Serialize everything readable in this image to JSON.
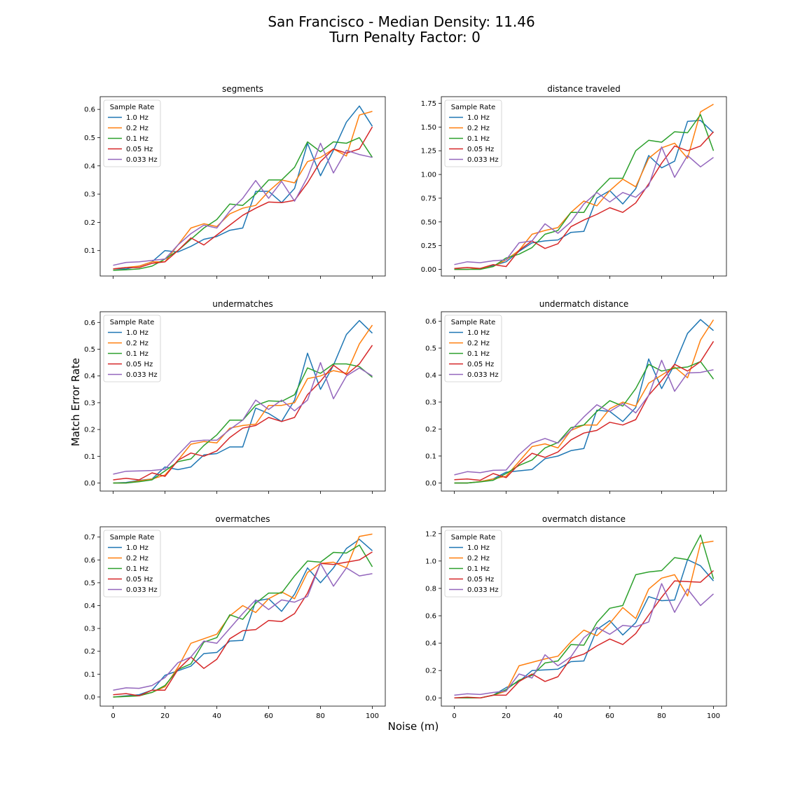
{
  "figure": {
    "title_line1": "San Francisco - Median Density: 11.46",
    "title_line2": "Turn Penalty Factor: 0",
    "xlabel": "Noise (m)",
    "ylabel": "Match Error Rate"
  },
  "colors": {
    "1.0 Hz": "#1f77b4",
    "0.2 Hz": "#ff7f0e",
    "0.1 Hz": "#2ca02c",
    "0.05 Hz": "#d62728",
    "0.033 Hz": "#9467bd"
  },
  "chart_data": [
    {
      "type": "line",
      "title": "segments",
      "legend_title": "Sample Rate",
      "legend_position": "upper-left",
      "x": [
        0,
        5,
        10,
        15,
        20,
        25,
        30,
        35,
        40,
        45,
        50,
        55,
        60,
        65,
        70,
        75,
        80,
        85,
        90,
        95,
        100
      ],
      "xlim": [
        -5,
        105
      ],
      "xticks": [
        0,
        20,
        40,
        60,
        80,
        100
      ],
      "ylim": [
        0.01,
        0.645
      ],
      "yticks": [
        0.1,
        0.2,
        0.3,
        0.4,
        0.5,
        0.6
      ],
      "yticklabels": [
        "0.1",
        "0.2",
        "0.3",
        "0.4",
        "0.5",
        "0.6"
      ],
      "series": [
        {
          "name": "1.0 Hz",
          "values": [
            0.035,
            0.035,
            0.045,
            0.06,
            0.1,
            0.095,
            0.115,
            0.14,
            0.15,
            0.172,
            0.18,
            0.31,
            0.31,
            0.27,
            0.32,
            0.48,
            0.365,
            0.455,
            0.555,
            0.612,
            0.54
          ]
        },
        {
          "name": "0.2 Hz",
          "values": [
            0.035,
            0.04,
            0.045,
            0.06,
            0.06,
            0.12,
            0.18,
            0.195,
            0.185,
            0.23,
            0.25,
            0.26,
            0.31,
            0.35,
            0.34,
            0.415,
            0.43,
            0.46,
            0.435,
            0.58,
            0.593
          ]
        },
        {
          "name": "0.1 Hz",
          "values": [
            0.03,
            0.032,
            0.035,
            0.045,
            0.07,
            0.1,
            0.14,
            0.18,
            0.21,
            0.265,
            0.26,
            0.3,
            0.35,
            0.35,
            0.395,
            0.485,
            0.45,
            0.485,
            0.48,
            0.5,
            0.43
          ]
        },
        {
          "name": "0.05 Hz",
          "values": [
            0.035,
            0.04,
            0.04,
            0.055,
            0.06,
            0.1,
            0.145,
            0.12,
            0.155,
            0.19,
            0.225,
            0.25,
            0.272,
            0.27,
            0.278,
            0.34,
            0.415,
            0.46,
            0.445,
            0.46,
            0.538
          ]
        },
        {
          "name": "0.033 Hz",
          "values": [
            0.048,
            0.058,
            0.06,
            0.065,
            0.07,
            0.12,
            0.16,
            0.19,
            0.18,
            0.24,
            0.285,
            0.348,
            0.285,
            0.345,
            0.275,
            0.36,
            0.48,
            0.375,
            0.455,
            0.44,
            0.43
          ]
        }
      ]
    },
    {
      "type": "line",
      "title": "distance traveled",
      "legend_title": "Sample Rate",
      "legend_position": "upper-left",
      "x": [
        0,
        5,
        10,
        15,
        20,
        25,
        30,
        35,
        40,
        45,
        50,
        55,
        60,
        65,
        70,
        75,
        80,
        85,
        90,
        95,
        100
      ],
      "xlim": [
        -5,
        105
      ],
      "xticks": [
        0,
        20,
        40,
        60,
        80,
        100
      ],
      "ylim": [
        -0.07,
        1.82
      ],
      "yticks": [
        0.0,
        0.25,
        0.5,
        0.75,
        1.0,
        1.25,
        1.5,
        1.75
      ],
      "yticklabels": [
        "0.00",
        "0.25",
        "0.50",
        "0.75",
        "1.00",
        "1.25",
        "1.50",
        "1.75"
      ],
      "series": [
        {
          "name": "1.0 Hz",
          "values": [
            0.0,
            0.0,
            0.01,
            0.04,
            0.08,
            0.19,
            0.28,
            0.3,
            0.31,
            0.39,
            0.4,
            0.75,
            0.83,
            0.69,
            0.85,
            1.2,
            1.07,
            1.14,
            1.56,
            1.57,
            1.44
          ]
        },
        {
          "name": "0.2 Hz",
          "values": [
            0.0,
            0.0,
            0.01,
            0.03,
            0.1,
            0.2,
            0.37,
            0.41,
            0.44,
            0.6,
            0.72,
            0.67,
            0.83,
            0.95,
            0.87,
            1.17,
            1.28,
            1.33,
            1.17,
            1.66,
            1.74
          ]
        },
        {
          "name": "0.1 Hz",
          "values": [
            0.0,
            0.0,
            0.0,
            0.03,
            0.12,
            0.16,
            0.23,
            0.37,
            0.41,
            0.6,
            0.6,
            0.82,
            0.96,
            0.96,
            1.25,
            1.36,
            1.34,
            1.45,
            1.44,
            1.63,
            1.25
          ]
        },
        {
          "name": "0.05 Hz",
          "values": [
            0.01,
            0.02,
            0.01,
            0.05,
            0.03,
            0.2,
            0.3,
            0.22,
            0.27,
            0.45,
            0.52,
            0.58,
            0.65,
            0.6,
            0.7,
            0.9,
            1.12,
            1.3,
            1.25,
            1.3,
            1.45
          ]
        },
        {
          "name": "0.033 Hz",
          "values": [
            0.05,
            0.08,
            0.07,
            0.09,
            0.1,
            0.28,
            0.3,
            0.48,
            0.38,
            0.5,
            0.69,
            0.81,
            0.71,
            0.81,
            0.76,
            0.88,
            1.29,
            0.97,
            1.2,
            1.08,
            1.18
          ]
        }
      ]
    },
    {
      "type": "line",
      "title": "undermatches",
      "legend_title": "Sample Rate",
      "legend_position": "upper-left",
      "x": [
        0,
        5,
        10,
        15,
        20,
        25,
        30,
        35,
        40,
        45,
        50,
        55,
        60,
        65,
        70,
        75,
        80,
        85,
        90,
        95,
        100
      ],
      "xlim": [
        -5,
        105
      ],
      "xticks": [
        0,
        20,
        40,
        60,
        80,
        100
      ],
      "ylim": [
        -0.03,
        0.64
      ],
      "yticks": [
        0.0,
        0.1,
        0.2,
        0.3,
        0.4,
        0.5,
        0.6
      ],
      "yticklabels": [
        "0.0",
        "0.1",
        "0.2",
        "0.3",
        "0.4",
        "0.5",
        "0.6"
      ],
      "series": [
        {
          "name": "1.0 Hz",
          "values": [
            0.0,
            0.002,
            0.01,
            0.015,
            0.06,
            0.05,
            0.06,
            0.105,
            0.11,
            0.135,
            0.135,
            0.28,
            0.26,
            0.23,
            0.31,
            0.485,
            0.35,
            0.44,
            0.555,
            0.607,
            0.56
          ]
        },
        {
          "name": "0.2 Hz",
          "values": [
            0.0,
            0.0,
            0.008,
            0.015,
            0.03,
            0.085,
            0.145,
            0.155,
            0.15,
            0.205,
            0.215,
            0.22,
            0.29,
            0.29,
            0.3,
            0.39,
            0.4,
            0.42,
            0.41,
            0.52,
            0.59
          ]
        },
        {
          "name": "0.1 Hz",
          "values": [
            0.0,
            0.0,
            0.005,
            0.012,
            0.045,
            0.08,
            0.09,
            0.14,
            0.18,
            0.235,
            0.235,
            0.29,
            0.307,
            0.305,
            0.33,
            0.43,
            0.41,
            0.445,
            0.445,
            0.435,
            0.395
          ]
        },
        {
          "name": "0.05 Hz",
          "values": [
            0.012,
            0.018,
            0.012,
            0.038,
            0.025,
            0.085,
            0.112,
            0.1,
            0.12,
            0.17,
            0.205,
            0.215,
            0.245,
            0.23,
            0.245,
            0.33,
            0.38,
            0.44,
            0.405,
            0.445,
            0.515
          ]
        },
        {
          "name": "0.033 Hz",
          "values": [
            0.033,
            0.044,
            0.045,
            0.047,
            0.052,
            0.105,
            0.155,
            0.16,
            0.16,
            0.2,
            0.235,
            0.31,
            0.275,
            0.31,
            0.27,
            0.31,
            0.45,
            0.315,
            0.4,
            0.43,
            0.4
          ]
        }
      ]
    },
    {
      "type": "line",
      "title": "undermatch distance",
      "legend_title": "Sample Rate",
      "legend_position": "upper-left",
      "x": [
        0,
        5,
        10,
        15,
        20,
        25,
        30,
        35,
        40,
        45,
        50,
        55,
        60,
        65,
        70,
        75,
        80,
        85,
        90,
        95,
        100
      ],
      "xlim": [
        -5,
        105
      ],
      "xticks": [
        0,
        20,
        40,
        60,
        80,
        100
      ],
      "ylim": [
        -0.03,
        0.635
      ],
      "yticks": [
        0.0,
        0.1,
        0.2,
        0.3,
        0.4,
        0.5,
        0.6
      ],
      "yticklabels": [
        "0.0",
        "0.1",
        "0.2",
        "0.3",
        "0.4",
        "0.5",
        "0.6"
      ],
      "series": [
        {
          "name": "1.0 Hz",
          "values": [
            0.0,
            0.0,
            0.005,
            0.015,
            0.04,
            0.045,
            0.05,
            0.09,
            0.1,
            0.12,
            0.128,
            0.27,
            0.265,
            0.228,
            0.28,
            0.46,
            0.35,
            0.44,
            0.555,
            0.606,
            0.565
          ]
        },
        {
          "name": "0.2 Hz",
          "values": [
            0.0,
            0.0,
            0.005,
            0.015,
            0.025,
            0.08,
            0.135,
            0.145,
            0.13,
            0.195,
            0.215,
            0.215,
            0.275,
            0.3,
            0.285,
            0.37,
            0.4,
            0.43,
            0.39,
            0.53,
            0.605
          ]
        },
        {
          "name": "0.1 Hz",
          "values": [
            0.0,
            0.0,
            0.004,
            0.01,
            0.035,
            0.065,
            0.085,
            0.13,
            0.15,
            0.205,
            0.215,
            0.265,
            0.305,
            0.285,
            0.35,
            0.44,
            0.415,
            0.425,
            0.43,
            0.45,
            0.385
          ]
        },
        {
          "name": "0.05 Hz",
          "values": [
            0.012,
            0.015,
            0.01,
            0.035,
            0.02,
            0.07,
            0.11,
            0.095,
            0.115,
            0.16,
            0.185,
            0.195,
            0.225,
            0.215,
            0.235,
            0.325,
            0.38,
            0.44,
            0.415,
            0.45,
            0.525
          ]
        },
        {
          "name": "0.033 Hz",
          "values": [
            0.03,
            0.042,
            0.038,
            0.047,
            0.048,
            0.105,
            0.148,
            0.165,
            0.148,
            0.195,
            0.245,
            0.29,
            0.265,
            0.295,
            0.26,
            0.325,
            0.455,
            0.34,
            0.408,
            0.41,
            0.42
          ]
        }
      ]
    },
    {
      "type": "line",
      "title": "overmatches",
      "legend_title": "Sample Rate",
      "legend_position": "upper-left",
      "x": [
        0,
        5,
        10,
        15,
        20,
        25,
        30,
        35,
        40,
        45,
        50,
        55,
        60,
        65,
        70,
        75,
        80,
        85,
        90,
        95,
        100
      ],
      "xlim": [
        -5,
        105
      ],
      "xticks": [
        0,
        20,
        40,
        60,
        80,
        100
      ],
      "ylim": [
        -0.04,
        0.745
      ],
      "yticks": [
        0.0,
        0.1,
        0.2,
        0.3,
        0.4,
        0.5,
        0.6,
        0.7
      ],
      "yticklabels": [
        "0.0",
        "0.1",
        "0.2",
        "0.3",
        "0.4",
        "0.5",
        "0.6",
        "0.7"
      ],
      "series": [
        {
          "name": "1.0 Hz",
          "values": [
            0.0,
            0.005,
            0.01,
            0.03,
            0.095,
            0.115,
            0.135,
            0.19,
            0.195,
            0.245,
            0.248,
            0.42,
            0.43,
            0.375,
            0.45,
            0.565,
            0.5,
            0.565,
            0.65,
            0.69,
            0.64
          ]
        },
        {
          "name": "0.2 Hz",
          "values": [
            0.0,
            0.003,
            0.005,
            0.02,
            0.045,
            0.13,
            0.235,
            0.255,
            0.275,
            0.355,
            0.4,
            0.37,
            0.43,
            0.46,
            0.43,
            0.545,
            0.585,
            0.59,
            0.565,
            0.703,
            0.713
          ]
        },
        {
          "name": "0.1 Hz",
          "values": [
            0.0,
            0.002,
            0.005,
            0.02,
            0.05,
            0.12,
            0.145,
            0.24,
            0.26,
            0.36,
            0.34,
            0.41,
            0.455,
            0.455,
            0.53,
            0.595,
            0.59,
            0.633,
            0.63,
            0.665,
            0.57
          ]
        },
        {
          "name": "0.05 Hz",
          "values": [
            0.01,
            0.015,
            0.005,
            0.03,
            0.03,
            0.12,
            0.175,
            0.125,
            0.165,
            0.255,
            0.29,
            0.295,
            0.335,
            0.33,
            0.365,
            0.455,
            0.585,
            0.58,
            0.59,
            0.6,
            0.635
          ]
        },
        {
          "name": "0.033 Hz",
          "values": [
            0.03,
            0.04,
            0.038,
            0.05,
            0.085,
            0.15,
            0.175,
            0.245,
            0.235,
            0.3,
            0.365,
            0.425,
            0.383,
            0.425,
            0.415,
            0.44,
            0.585,
            0.485,
            0.565,
            0.53,
            0.54
          ]
        }
      ]
    },
    {
      "type": "line",
      "title": "overmatch distance",
      "legend_title": "Sample Rate",
      "legend_position": "upper-left",
      "x": [
        0,
        5,
        10,
        15,
        20,
        25,
        30,
        35,
        40,
        45,
        50,
        55,
        60,
        65,
        70,
        75,
        80,
        85,
        90,
        95,
        100
      ],
      "xlim": [
        -5,
        105
      ],
      "xticks": [
        0,
        20,
        40,
        60,
        80,
        100
      ],
      "ylim": [
        -0.06,
        1.25
      ],
      "yticks": [
        0.0,
        0.2,
        0.4,
        0.6,
        0.8,
        1.0,
        1.2
      ],
      "yticklabels": [
        "0.0",
        "0.2",
        "0.4",
        "0.6",
        "0.8",
        "1.0",
        "1.2"
      ],
      "series": [
        {
          "name": "1.0 Hz",
          "values": [
            0.0,
            0.0,
            0.0,
            0.02,
            0.075,
            0.12,
            0.2,
            0.205,
            0.21,
            0.265,
            0.27,
            0.5,
            0.565,
            0.46,
            0.55,
            0.74,
            0.71,
            0.715,
            1.01,
            0.965,
            0.855
          ]
        },
        {
          "name": "0.2 Hz",
          "values": [
            0.0,
            0.0,
            0.0,
            0.02,
            0.05,
            0.235,
            0.26,
            0.285,
            0.305,
            0.41,
            0.495,
            0.455,
            0.545,
            0.66,
            0.58,
            0.795,
            0.875,
            0.9,
            0.745,
            1.13,
            1.145
          ]
        },
        {
          "name": "0.1 Hz",
          "values": [
            0.0,
            0.0,
            0.0,
            0.02,
            0.06,
            0.13,
            0.165,
            0.255,
            0.27,
            0.39,
            0.385,
            0.55,
            0.655,
            0.675,
            0.9,
            0.92,
            0.93,
            1.025,
            1.01,
            1.19,
            0.87
          ]
        },
        {
          "name": "0.05 Hz",
          "values": [
            0.0,
            0.005,
            0.0,
            0.02,
            0.02,
            0.12,
            0.175,
            0.12,
            0.155,
            0.29,
            0.32,
            0.38,
            0.43,
            0.39,
            0.47,
            0.605,
            0.735,
            0.855,
            0.85,
            0.845,
            0.93
          ]
        },
        {
          "name": "0.033 Hz",
          "values": [
            0.02,
            0.03,
            0.025,
            0.04,
            0.05,
            0.175,
            0.145,
            0.315,
            0.235,
            0.3,
            0.44,
            0.515,
            0.465,
            0.53,
            0.52,
            0.555,
            0.835,
            0.625,
            0.795,
            0.675,
            0.76
          ]
        }
      ]
    }
  ]
}
